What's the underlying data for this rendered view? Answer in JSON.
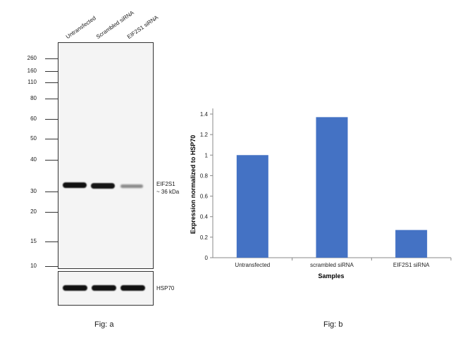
{
  "fig_a": {
    "lanes": [
      "Untransfected",
      "Scrambled siRNA",
      "EIF2S1 siRNA"
    ],
    "mw_markers": [
      "260",
      "160",
      "110",
      "80",
      "60",
      "50",
      "40",
      "30",
      "20",
      "15",
      "10"
    ],
    "band_label_line1": "EIF2S1",
    "band_label_line2": "~ 36 kDa",
    "loading_label": "HSP70",
    "caption": "Fig: a"
  },
  "fig_b": {
    "caption": "Fig: b"
  },
  "chart_data": {
    "type": "bar",
    "categories": [
      "Untransfected",
      "scrambled siRNA",
      "EIF2S1 siRNA"
    ],
    "values": [
      1.0,
      1.37,
      0.27
    ],
    "title": "",
    "xlabel": "Samples",
    "ylabel": "Expression normalized to HSP70",
    "ylim": [
      0,
      1.4
    ],
    "yticks": [
      "0",
      "0.2",
      "0.4",
      "0.6",
      "0.8",
      "1",
      "1.2",
      "1.4"
    ],
    "bar_color": "#4472c4",
    "grid": false
  }
}
